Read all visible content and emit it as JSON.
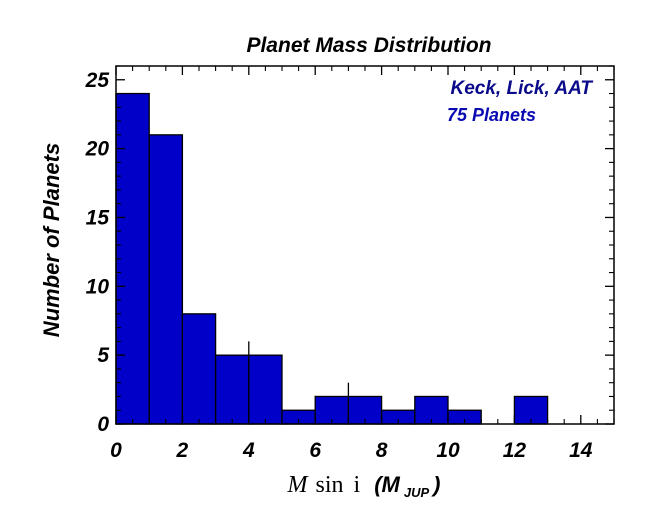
{
  "chart_data": {
    "type": "bar",
    "title": "Planet Mass Distribution",
    "ylabel": "Number of Planets",
    "xlabel": {
      "symbol": "M",
      "func": "sin",
      "var": "i",
      "unit_open": "(M",
      "unit_sub": "JUP",
      "unit_close": ")"
    },
    "bin_edges": [
      0,
      1,
      2,
      3,
      4,
      5,
      6,
      7,
      8,
      9,
      10,
      11,
      12,
      13
    ],
    "values": [
      24,
      21,
      8,
      5,
      5,
      1,
      2,
      2,
      1,
      2,
      1,
      0,
      2
    ],
    "error_bar_tops": [
      {
        "x": 4,
        "y": 6
      },
      {
        "x": 7,
        "y": 3
      }
    ],
    "xlim": [
      0,
      15
    ],
    "ylim": [
      0,
      26
    ],
    "xticks": [
      0,
      2,
      4,
      6,
      8,
      10,
      12,
      14
    ],
    "yticks": [
      0,
      5,
      10,
      15,
      20,
      25
    ],
    "bar_color": "#0000c8",
    "annotations": [
      "Keck, Lick, AAT",
      "75 Planets"
    ],
    "grid": false
  }
}
